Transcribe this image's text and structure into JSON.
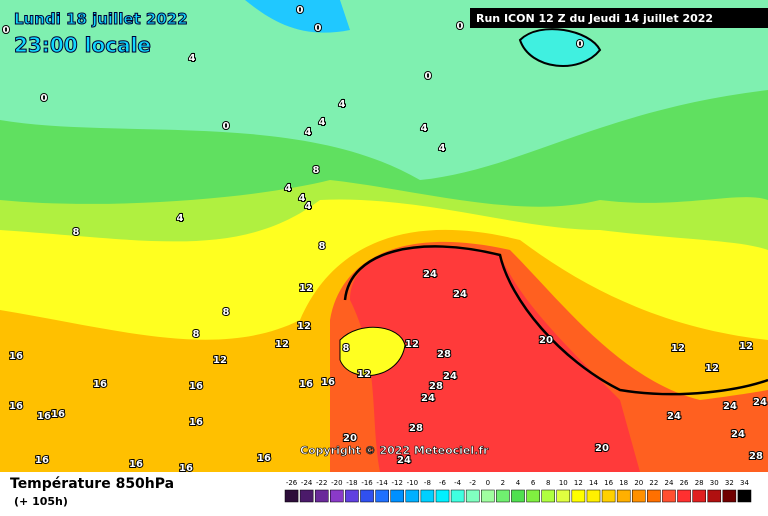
{
  "header": {
    "date": "Lundi 18 juillet 2022",
    "time": "23:00 locale",
    "run": "Run ICON 12 Z du Jeudi 14 juillet 2022"
  },
  "footer": {
    "title": "Température 850hPa",
    "lead": "(+ 105h)",
    "copyright": "Copyright © 2022 Meteociel.fr"
  },
  "legend": [
    {
      "label": -26,
      "color": "#2d0d3a"
    },
    {
      "label": -24,
      "color": "#4b1a6a"
    },
    {
      "label": -22,
      "color": "#6a2a9a"
    },
    {
      "label": -20,
      "color": "#8a3ac8"
    },
    {
      "label": -18,
      "color": "#6040e0"
    },
    {
      "label": -16,
      "color": "#3050f0"
    },
    {
      "label": -14,
      "color": "#2070ff"
    },
    {
      "label": -12,
      "color": "#0090ff"
    },
    {
      "label": -10,
      "color": "#00b0ff"
    },
    {
      "label": -8,
      "color": "#00d0ff"
    },
    {
      "label": -6,
      "color": "#00f0ff"
    },
    {
      "label": -4,
      "color": "#40ffe0"
    },
    {
      "label": -2,
      "color": "#80ffc0"
    },
    {
      "label": 0,
      "color": "#a0ffa0"
    },
    {
      "label": 2,
      "color": "#70f070"
    },
    {
      "label": 4,
      "color": "#50e050"
    },
    {
      "label": 6,
      "color": "#80f040"
    },
    {
      "label": 8,
      "color": "#b0ff40"
    },
    {
      "label": 10,
      "color": "#e0ff40"
    },
    {
      "label": 12,
      "color": "#ffff00"
    },
    {
      "label": 14,
      "color": "#fff000"
    },
    {
      "label": 16,
      "color": "#ffd000"
    },
    {
      "label": 18,
      "color": "#ffb000"
    },
    {
      "label": 20,
      "color": "#ff9000"
    },
    {
      "label": 22,
      "color": "#ff7000"
    },
    {
      "label": 24,
      "color": "#ff5030"
    },
    {
      "label": 26,
      "color": "#ff3030"
    },
    {
      "label": 28,
      "color": "#e02020"
    },
    {
      "label": 30,
      "color": "#b01010"
    },
    {
      "label": 32,
      "color": "#700000"
    },
    {
      "label": 34,
      "color": "#000000"
    }
  ],
  "contour_labels": [
    0,
    0,
    0,
    0,
    0,
    0,
    0,
    0,
    4,
    4,
    4,
    4,
    4,
    4,
    4,
    4,
    4,
    4,
    8,
    8,
    8,
    8,
    8,
    8,
    12,
    12,
    12,
    12,
    12,
    12,
    12,
    12,
    12,
    16,
    16,
    16,
    16,
    16,
    16,
    16,
    16,
    16,
    16,
    16,
    16,
    16,
    20,
    20,
    20,
    24,
    24,
    24,
    24,
    24,
    24,
    24,
    24,
    24,
    28,
    28,
    28,
    28
  ]
}
